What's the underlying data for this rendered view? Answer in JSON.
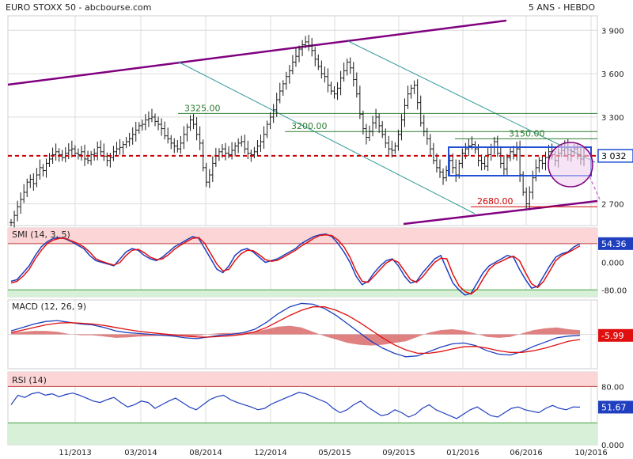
{
  "header": {
    "title": "EURO STOXX 50 - abcbourse.com",
    "period": "5 ANS - HEBDO"
  },
  "colors": {
    "price": "#1a1a1a",
    "trendline": "#800080",
    "channel": "#2e9a95",
    "support": "#2e7d32",
    "dashed": "#cc0000",
    "box": "#1f4fd6",
    "oscillator_main": "#1f3fbf",
    "oscillator_signal": "#e01010",
    "overbought_zone": "#fcd6d6",
    "oversold_zone": "#d8f0d8",
    "histogram": "#d96b6b",
    "current_label_bg": "#1f3fbf",
    "macd_label_bg": "#e01010"
  },
  "chart_data": [
    {
      "type": "ohlc",
      "name": "price",
      "ylim": [
        2550,
        4000
      ],
      "yticks": [
        {
          "value": 3900,
          "label": "3 900"
        },
        {
          "value": 3600,
          "label": "3 600"
        },
        {
          "value": 3300,
          "label": "3 300"
        },
        {
          "value": 2700,
          "label": "2 700"
        }
      ],
      "current": {
        "value": 3032,
        "label": "3 032"
      },
      "x_dates": [
        "11/2013",
        "03/2014",
        "08/2014",
        "12/2014",
        "05/2015",
        "09/2015",
        "01/2016",
        "06/2016",
        "10/2016"
      ],
      "weekly_close": [
        2570,
        2620,
        2680,
        2730,
        2780,
        2850,
        2870,
        2840,
        2900,
        2950,
        2930,
        2980,
        3010,
        3040,
        3060,
        3040,
        3020,
        3050,
        3070,
        3080,
        3050,
        3040,
        3060,
        3010,
        3000,
        3040,
        3050,
        3090,
        3060,
        3030,
        3000,
        3020,
        3060,
        3080,
        3090,
        3110,
        3130,
        3150,
        3180,
        3210,
        3240,
        3250,
        3280,
        3290,
        3300,
        3270,
        3250,
        3220,
        3170,
        3150,
        3120,
        3100,
        3080,
        3120,
        3180,
        3230,
        3280,
        3250,
        3180,
        3120,
        2950,
        2850,
        2900,
        2980,
        3030,
        3060,
        3080,
        3050,
        3040,
        3070,
        3100,
        3120,
        3130,
        3080,
        3050,
        3040,
        3060,
        3100,
        3130,
        3180,
        3250,
        3300,
        3350,
        3420,
        3480,
        3530,
        3580,
        3620,
        3680,
        3720,
        3770,
        3800,
        3820,
        3790,
        3760,
        3700,
        3650,
        3600,
        3580,
        3520,
        3480,
        3460,
        3500,
        3570,
        3620,
        3680,
        3640,
        3560,
        3460,
        3320,
        3220,
        3160,
        3200,
        3260,
        3300,
        3240,
        3180,
        3120,
        3080,
        3070,
        3100,
        3180,
        3280,
        3380,
        3460,
        3500,
        3520,
        3400,
        3260,
        3200,
        3150,
        3080,
        3000,
        2950,
        2920,
        2880,
        2930,
        3000,
        2950,
        2900,
        2980,
        3050,
        3080,
        3100,
        3110,
        3080,
        3000,
        2980,
        2960,
        3040,
        3090,
        3130,
        3050,
        2980,
        2940,
        3020,
        3060,
        3040,
        3080,
        2900,
        2780,
        2700,
        2780,
        2880,
        2950,
        3000,
        2980,
        3020,
        3060,
        3040,
        3000,
        3050,
        3070,
        3090,
        3040,
        3060,
        3080,
        3040,
        3010,
        3030
      ],
      "levels": [
        {
          "value": 3325,
          "label": "3325.00",
          "color": "#2e7d32"
        },
        {
          "value": 3200,
          "label": "3200.00",
          "color": "#2e7d32"
        },
        {
          "value": 3150,
          "label": "3150.00",
          "color": "#2e7d32"
        },
        {
          "value": 2680,
          "label": "2680.00",
          "color": "#cc0000"
        }
      ],
      "dashed_level": 3032,
      "grid": true
    },
    {
      "type": "line",
      "name": "SMI",
      "title": "SMI (14, 3, 5)",
      "ylim": [
        -100,
        100
      ],
      "yticks": [
        {
          "value": 0,
          "label": "0.000"
        },
        {
          "value": -80,
          "label": "-80.00"
        }
      ],
      "overbought": 54.36,
      "oversold": -80,
      "current": {
        "value": 54.36,
        "label": "54.36"
      },
      "series": [
        {
          "name": "SMI",
          "values": [
            -55,
            -50,
            -30,
            -10,
            20,
            45,
            60,
            70,
            72,
            68,
            60,
            50,
            40,
            20,
            5,
            0,
            -5,
            -10,
            10,
            30,
            40,
            35,
            20,
            10,
            5,
            15,
            30,
            45,
            55,
            65,
            75,
            70,
            40,
            10,
            -20,
            -30,
            -10,
            20,
            35,
            40,
            30,
            15,
            0,
            5,
            10,
            20,
            30,
            40,
            55,
            65,
            75,
            80,
            82,
            75,
            55,
            30,
            0,
            -40,
            -65,
            -55,
            -30,
            -10,
            5,
            10,
            -10,
            -40,
            -60,
            -55,
            -30,
            -10,
            10,
            20,
            -20,
            -60,
            -80,
            -95,
            -90,
            -60,
            -30,
            -10,
            0,
            10,
            20,
            15,
            -20,
            -50,
            -75,
            -70,
            -40,
            -10,
            15,
            25,
            30,
            45,
            54
          ]
        },
        {
          "name": "signal",
          "values": [
            -60,
            -55,
            -40,
            -20,
            10,
            35,
            55,
            65,
            70,
            70,
            62,
            55,
            45,
            30,
            10,
            3,
            -3,
            -8,
            0,
            20,
            35,
            38,
            28,
            15,
            8,
            10,
            22,
            38,
            50,
            60,
            70,
            72,
            55,
            25,
            -5,
            -25,
            -20,
            5,
            25,
            35,
            34,
            22,
            8,
            3,
            6,
            15,
            25,
            35,
            48,
            58,
            70,
            78,
            80,
            78,
            65,
            45,
            15,
            -25,
            -55,
            -58,
            -40,
            -20,
            -2,
            8,
            0,
            -25,
            -50,
            -58,
            -42,
            -20,
            0,
            12,
            10,
            -35,
            -68,
            -85,
            -92,
            -78,
            -48,
            -20,
            -5,
            3,
            12,
            18,
            5,
            -30,
            -62,
            -73,
            -55,
            -25,
            5,
            20,
            28,
            38,
            48
          ]
        }
      ],
      "grid": true
    },
    {
      "type": "line",
      "name": "MACD",
      "title": "MACD (12, 26, 9)",
      "ylim": [
        -200,
        200
      ],
      "current": {
        "value": -5.99,
        "label": "-5.99"
      },
      "series": [
        {
          "name": "MACD",
          "values": [
            20,
            40,
            60,
            75,
            80,
            70,
            60,
            55,
            40,
            20,
            10,
            5,
            0,
            -5,
            -10,
            -20,
            -25,
            -15,
            -5,
            0,
            10,
            30,
            70,
            120,
            160,
            180,
            175,
            150,
            110,
            60,
            10,
            -40,
            -80,
            -110,
            -130,
            -125,
            -100,
            -75,
            -55,
            -50,
            -65,
            -95,
            -115,
            -120,
            -100,
            -70,
            -45,
            -20,
            -10,
            -6
          ]
        },
        {
          "name": "signal",
          "values": [
            10,
            25,
            40,
            55,
            65,
            68,
            65,
            60,
            52,
            40,
            28,
            18,
            10,
            3,
            -3,
            -10,
            -15,
            -16,
            -12,
            -8,
            0,
            15,
            40,
            75,
            110,
            140,
            160,
            160,
            140,
            110,
            70,
            25,
            -20,
            -60,
            -90,
            -110,
            -110,
            -100,
            -85,
            -72,
            -70,
            -80,
            -95,
            -105,
            -105,
            -95,
            -80,
            -60,
            -40,
            -30
          ]
        }
      ],
      "grid": true
    },
    {
      "type": "line",
      "name": "RSI",
      "title": "RSI (14)",
      "ylim": [
        0,
        100
      ],
      "yticks": [
        {
          "value": 80,
          "label": "80.00"
        },
        {
          "value": 0,
          "label": "0.000"
        }
      ],
      "overbought": 80,
      "oversold": 30,
      "current": {
        "value": 51.67,
        "label": "51.67"
      },
      "series": [
        {
          "name": "RSI",
          "values": [
            55,
            68,
            65,
            70,
            72,
            68,
            70,
            66,
            69,
            71,
            68,
            64,
            60,
            58,
            62,
            65,
            58,
            52,
            55,
            60,
            58,
            50,
            55,
            60,
            64,
            58,
            52,
            48,
            55,
            62,
            66,
            68,
            62,
            58,
            55,
            52,
            48,
            50,
            56,
            60,
            64,
            68,
            72,
            70,
            66,
            62,
            58,
            50,
            44,
            48,
            55,
            60,
            52,
            46,
            40,
            42,
            48,
            44,
            38,
            42,
            50,
            55,
            48,
            44,
            40,
            36,
            42,
            48,
            52,
            46,
            40,
            38,
            44,
            50,
            52,
            48,
            46,
            44,
            50,
            54,
            50,
            48,
            52,
            51.67
          ]
        }
      ],
      "grid": true
    }
  ]
}
